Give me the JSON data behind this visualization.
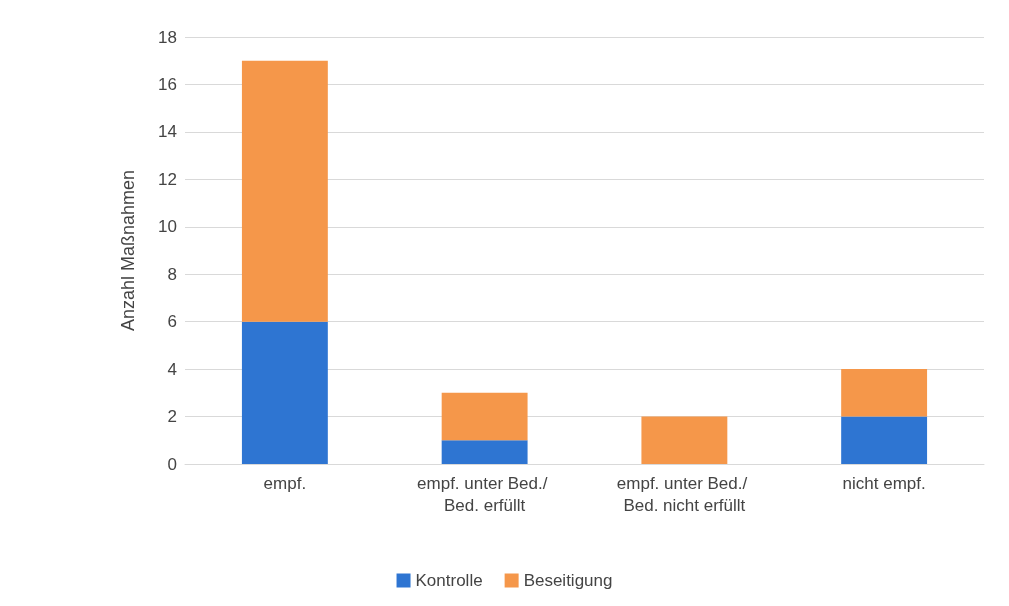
{
  "chart_data": {
    "type": "bar",
    "stacked": true,
    "ylabel": "Anzahl Maßnahmen",
    "categories": [
      "empf.",
      "empf. unter Bed./ Bed. erfüllt",
      "empf. unter Bed./ Bed. nicht erfüllt",
      "nicht empf."
    ],
    "series": [
      {
        "name": "Kontrolle",
        "color": "#2e75d2",
        "values": [
          6,
          1,
          0,
          2
        ]
      },
      {
        "name": "Beseitigung",
        "color": "#f5974a",
        "values": [
          11,
          2,
          2,
          2
        ]
      }
    ],
    "ylim": [
      0,
      18
    ],
    "yticks": [
      0,
      2,
      4,
      6,
      8,
      10,
      12,
      14,
      16,
      18
    ],
    "grid": "y",
    "legend": "bottom"
  }
}
